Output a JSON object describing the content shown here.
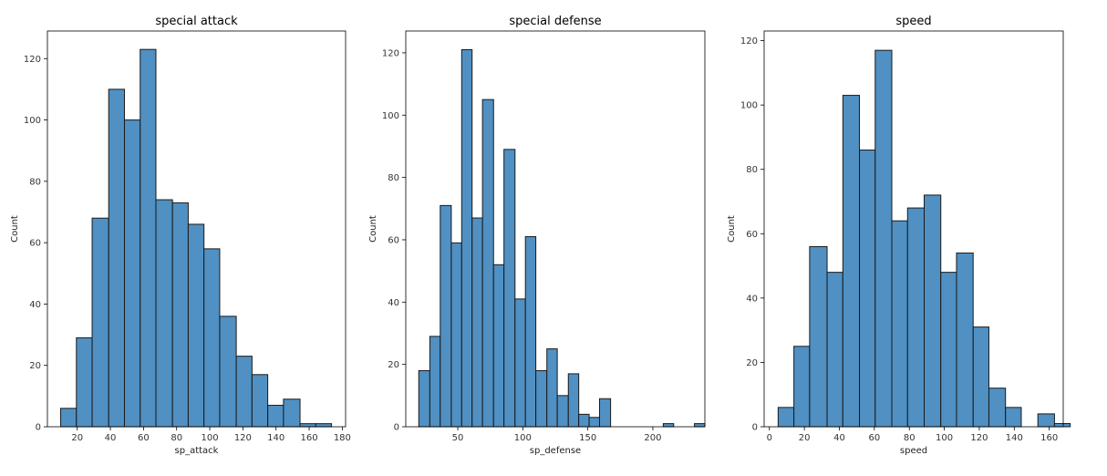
{
  "chart_data": [
    {
      "type": "bar",
      "title": "special attack",
      "xlabel": "sp_attack",
      "ylabel": "Count",
      "xlim": [
        2,
        182
      ],
      "ylim": [
        0,
        129
      ],
      "xticks": [
        20,
        40,
        60,
        80,
        100,
        120,
        140,
        160,
        180
      ],
      "yticks": [
        0,
        20,
        40,
        60,
        80,
        100,
        120
      ],
      "grid": false,
      "legend": "none",
      "bar_color": "#5090c2",
      "bins": [
        {
          "x0": 10,
          "x1": 19.5,
          "count": 6
        },
        {
          "x0": 19.5,
          "x1": 29,
          "count": 29
        },
        {
          "x0": 29,
          "x1": 39,
          "count": 68
        },
        {
          "x0": 39,
          "x1": 48.5,
          "count": 110
        },
        {
          "x0": 48.5,
          "x1": 58,
          "count": 100
        },
        {
          "x0": 58,
          "x1": 67.5,
          "count": 123
        },
        {
          "x0": 67.5,
          "x1": 77.5,
          "count": 74
        },
        {
          "x0": 77.5,
          "x1": 87,
          "count": 73
        },
        {
          "x0": 87,
          "x1": 96.5,
          "count": 66
        },
        {
          "x0": 96.5,
          "x1": 106,
          "count": 58
        },
        {
          "x0": 106,
          "x1": 116,
          "count": 36
        },
        {
          "x0": 116,
          "x1": 125.5,
          "count": 23
        },
        {
          "x0": 125.5,
          "x1": 135,
          "count": 17
        },
        {
          "x0": 135,
          "x1": 144.5,
          "count": 7
        },
        {
          "x0": 144.5,
          "x1": 154.5,
          "count": 9
        },
        {
          "x0": 154.5,
          "x1": 164,
          "count": 1
        },
        {
          "x0": 164,
          "x1": 173.5,
          "count": 1
        }
      ]
    },
    {
      "type": "bar",
      "title": "special defense",
      "xlabel": "sp_defense",
      "ylabel": "Count",
      "xlim": [
        10,
        240
      ],
      "ylim": [
        0,
        127
      ],
      "xticks": [
        50,
        100,
        150,
        200
      ],
      "yticks": [
        0,
        20,
        40,
        60,
        80,
        100,
        120
      ],
      "grid": false,
      "legend": "none",
      "bar_color": "#5090c2",
      "bins": [
        {
          "x0": 20,
          "x1": 28.5,
          "count": 18
        },
        {
          "x0": 28.5,
          "x1": 36.5,
          "count": 29
        },
        {
          "x0": 36.5,
          "x1": 45,
          "count": 71
        },
        {
          "x0": 45,
          "x1": 53,
          "count": 59
        },
        {
          "x0": 53,
          "x1": 61,
          "count": 121
        },
        {
          "x0": 61,
          "x1": 69,
          "count": 67
        },
        {
          "x0": 69,
          "x1": 77.5,
          "count": 105
        },
        {
          "x0": 77.5,
          "x1": 85.5,
          "count": 52
        },
        {
          "x0": 85.5,
          "x1": 94,
          "count": 89
        },
        {
          "x0": 94,
          "x1": 102,
          "count": 41
        },
        {
          "x0": 102,
          "x1": 110,
          "count": 61
        },
        {
          "x0": 110,
          "x1": 118.5,
          "count": 18
        },
        {
          "x0": 118.5,
          "x1": 126.5,
          "count": 25
        },
        {
          "x0": 126.5,
          "x1": 135,
          "count": 10
        },
        {
          "x0": 135,
          "x1": 143,
          "count": 17
        },
        {
          "x0": 143,
          "x1": 151,
          "count": 4
        },
        {
          "x0": 151,
          "x1": 159,
          "count": 3
        },
        {
          "x0": 159,
          "x1": 167.5,
          "count": 9
        },
        {
          "x0": 208,
          "x1": 216,
          "count": 1
        },
        {
          "x0": 232,
          "x1": 240,
          "count": 1
        }
      ]
    },
    {
      "type": "bar",
      "title": "speed",
      "xlabel": "speed",
      "ylabel": "Count",
      "xlim": [
        -3,
        168
      ],
      "ylim": [
        0,
        123
      ],
      "xticks": [
        0,
        20,
        40,
        60,
        80,
        100,
        120,
        140,
        160
      ],
      "yticks": [
        0,
        20,
        40,
        60,
        80,
        100,
        120
      ],
      "grid": false,
      "legend": "none",
      "bar_color": "#5090c2",
      "bins": [
        {
          "x0": 5,
          "x1": 14,
          "count": 6
        },
        {
          "x0": 14,
          "x1": 23,
          "count": 25
        },
        {
          "x0": 23,
          "x1": 33,
          "count": 56
        },
        {
          "x0": 33,
          "x1": 42,
          "count": 48
        },
        {
          "x0": 42,
          "x1": 51.5,
          "count": 103
        },
        {
          "x0": 51.5,
          "x1": 60.5,
          "count": 86
        },
        {
          "x0": 60.5,
          "x1": 70,
          "count": 117
        },
        {
          "x0": 70,
          "x1": 79,
          "count": 64
        },
        {
          "x0": 79,
          "x1": 88.5,
          "count": 68
        },
        {
          "x0": 88.5,
          "x1": 98,
          "count": 72
        },
        {
          "x0": 98,
          "x1": 107,
          "count": 48
        },
        {
          "x0": 107,
          "x1": 116.5,
          "count": 54
        },
        {
          "x0": 116.5,
          "x1": 125.5,
          "count": 31
        },
        {
          "x0": 125.5,
          "x1": 135,
          "count": 12
        },
        {
          "x0": 135,
          "x1": 144,
          "count": 6
        },
        {
          "x0": 153.5,
          "x1": 163,
          "count": 4
        },
        {
          "x0": 163,
          "x1": 172,
          "count": 1
        }
      ]
    }
  ]
}
